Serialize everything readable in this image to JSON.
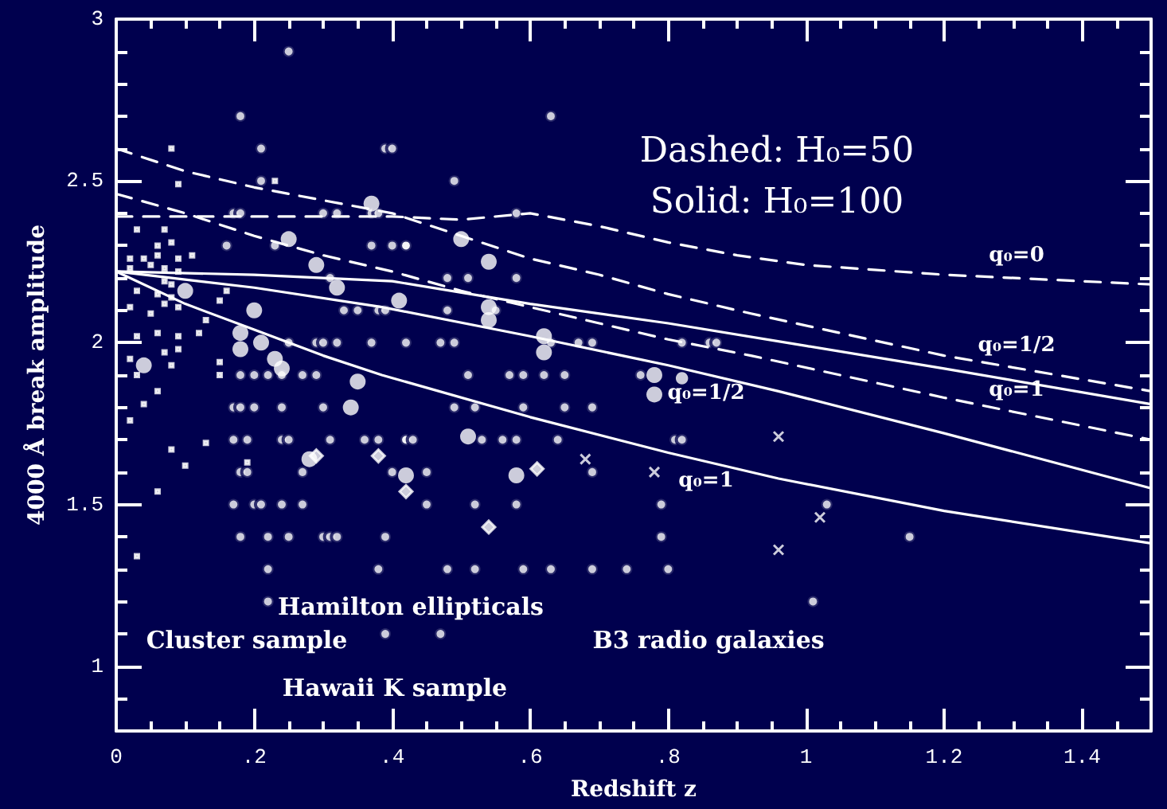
{
  "chart_data": {
    "type": "scatter",
    "xlabel": "Redshift z",
    "ylabel": "4000 Å break amplitude",
    "xlim": [
      0,
      1.5
    ],
    "xticks": [
      {
        "value": 0,
        "label": "0"
      },
      {
        "value": 0.2,
        "label": ".2"
      },
      {
        "value": 0.4,
        "label": ".4"
      },
      {
        "value": 0.6,
        "label": ".6"
      },
      {
        "value": 0.8,
        "label": ".8"
      },
      {
        "value": 1,
        "label": "1"
      },
      {
        "value": 1.2,
        "label": "1.2"
      },
      {
        "value": 1.4,
        "label": "1.4"
      }
    ],
    "ylim": [
      0.8,
      3
    ],
    "yticks": [
      1,
      1.5,
      2,
      2.5,
      3
    ],
    "grid": false,
    "series": [
      {
        "type": "scatter",
        "marker": "circle",
        "color": "#ffffff",
        "x": [
          0.25,
          0.18,
          0.21,
          0.39,
          0.4,
          0.21,
          0.17,
          0.18,
          0.3,
          0.32,
          0.37,
          0.38,
          0.16,
          0.23,
          0.37,
          0.4,
          0.42,
          0.42,
          0.31,
          0.33,
          0.35,
          0.38,
          0.39,
          0.25,
          0.29,
          0.3,
          0.32,
          0.37,
          0.42,
          0.18,
          0.2,
          0.22,
          0.24,
          0.27,
          0.29,
          0.17,
          0.18,
          0.2,
          0.24,
          0.3,
          0.17,
          0.19,
          0.24,
          0.25,
          0.31,
          0.36,
          0.38,
          0.42,
          0.18,
          0.19,
          0.27,
          0.4,
          0.17,
          0.2,
          0.21,
          0.24,
          0.27,
          0.18,
          0.22,
          0.25,
          0.3,
          0.31,
          0.32,
          0.39,
          0.22,
          0.38,
          0.22,
          0.39,
          0.63,
          0.49,
          0.58,
          0.48,
          0.51,
          0.58,
          0.48,
          0.55,
          0.47,
          0.49,
          0.63,
          0.67,
          0.69,
          0.82,
          0.86,
          0.87,
          0.51,
          0.57,
          0.59,
          0.62,
          0.65,
          0.76,
          0.49,
          0.52,
          0.59,
          0.65,
          0.69,
          0.42,
          0.43,
          0.53,
          0.56,
          0.58,
          0.64,
          0.81,
          0.82,
          0.45,
          0.69,
          0.45,
          0.52,
          0.58,
          0.79,
          0.79,
          0.48,
          0.52,
          0.59,
          0.63,
          0.69,
          0.74,
          0.8,
          0.47,
          1.03,
          1.15,
          1.01
        ],
        "values": [
          2.9,
          2.7,
          2.6,
          2.6,
          2.6,
          2.5,
          2.4,
          2.4,
          2.4,
          2.4,
          2.4,
          2.4,
          2.3,
          2.3,
          2.3,
          2.3,
          2.3,
          2.3,
          2.2,
          2.1,
          2.1,
          2.1,
          2.1,
          2.0,
          2.0,
          2.0,
          2.0,
          2.0,
          2.0,
          1.9,
          1.9,
          1.9,
          1.9,
          1.9,
          1.9,
          1.8,
          1.8,
          1.8,
          1.8,
          1.8,
          1.7,
          1.7,
          1.7,
          1.7,
          1.7,
          1.7,
          1.7,
          1.7,
          1.6,
          1.6,
          1.6,
          1.6,
          1.5,
          1.5,
          1.5,
          1.5,
          1.5,
          1.4,
          1.4,
          1.4,
          1.4,
          1.4,
          1.4,
          1.4,
          1.3,
          1.3,
          1.2,
          1.1,
          2.7,
          2.5,
          2.4,
          2.2,
          2.2,
          2.2,
          2.1,
          2.1,
          2.0,
          2.0,
          2.0,
          2.0,
          2.0,
          2.0,
          2.0,
          2.0,
          1.9,
          1.9,
          1.9,
          1.9,
          1.9,
          1.9,
          1.8,
          1.8,
          1.8,
          1.8,
          1.8,
          1.7,
          1.7,
          1.7,
          1.7,
          1.7,
          1.7,
          1.7,
          1.7,
          1.6,
          1.6,
          1.5,
          1.5,
          1.5,
          1.5,
          1.4,
          1.3,
          1.3,
          1.3,
          1.3,
          1.3,
          1.3,
          1.3,
          1.1,
          1.5,
          1.4,
          1.2
        ]
      },
      {
        "type": "bubble",
        "color": "#ffffff",
        "x": [
          0.37,
          0.25,
          0.29,
          0.32,
          0.41,
          0.1,
          0.2,
          0.18,
          0.18,
          0.21,
          0.23,
          0.24,
          0.04,
          0.35,
          0.34,
          0.28,
          0.42,
          0.5,
          0.54,
          0.54,
          0.54,
          0.62,
          0.62,
          0.78,
          0.78,
          0.51,
          0.58,
          0.82
        ],
        "values": [
          2.43,
          2.32,
          2.24,
          2.17,
          2.13,
          2.16,
          2.1,
          2.03,
          1.98,
          2.0,
          1.95,
          1.92,
          1.93,
          1.88,
          1.8,
          1.64,
          1.59,
          2.32,
          2.25,
          2.11,
          2.07,
          2.02,
          1.97,
          1.9,
          1.84,
          1.71,
          1.59,
          1.89
        ],
        "sizes": [
          1,
          1,
          1,
          1,
          1,
          1,
          1,
          1,
          1,
          1,
          1,
          1,
          1,
          1,
          1,
          1,
          1,
          1,
          1,
          1,
          1,
          1,
          1,
          1,
          1,
          1,
          1,
          0.6
        ]
      },
      {
        "type": "scatter",
        "marker": "square",
        "color": "#ffffff",
        "x": [
          0.08,
          0.09,
          0.23,
          0.03,
          0.07,
          0.06,
          0.08,
          0.06,
          0.09,
          0.04,
          0.02,
          0.11,
          0.05,
          0.07,
          0.09,
          0.02,
          0.04,
          0.07,
          0.08,
          0.03,
          0.06,
          0.08,
          0.02,
          0.05,
          0.07,
          0.09,
          0.16,
          0.13,
          0.15,
          0.03,
          0.06,
          0.09,
          0.12,
          0.07,
          0.09,
          0.02,
          0.08,
          0.15,
          0.03,
          0.15,
          0.06,
          0.02,
          0.04,
          0.08,
          0.13,
          0.1,
          0.06,
          0.03,
          0.19
        ],
        "values": [
          2.6,
          2.49,
          2.5,
          2.35,
          2.35,
          2.3,
          2.31,
          2.27,
          2.26,
          2.26,
          2.26,
          2.27,
          2.24,
          2.23,
          2.22,
          2.23,
          null,
          2.19,
          2.18,
          2.16,
          2.15,
          2.14,
          2.11,
          2.09,
          2.12,
          2.11,
          2.16,
          2.07,
          2.13,
          2.02,
          2.03,
          2.02,
          2.03,
          1.97,
          1.98,
          1.95,
          1.93,
          1.94,
          1.9,
          1.9,
          1.85,
          1.76,
          1.81,
          1.67,
          1.69,
          1.62,
          1.54,
          1.34,
          1.63
        ]
      },
      {
        "type": "scatter",
        "marker": "cross",
        "color": "#ffffff",
        "x": [
          0.68,
          0.78,
          0.96,
          1.02,
          0.96
        ],
        "values": [
          1.64,
          1.6,
          1.71,
          1.46,
          1.36
        ]
      },
      {
        "type": "scatter",
        "marker": "diamond",
        "color": "#ffffff",
        "x": [
          0.29,
          0.38,
          0.42,
          0.54,
          0.61
        ],
        "values": [
          1.65,
          1.65,
          1.54,
          1.43,
          1.61
        ]
      },
      {
        "type": "line",
        "name": "q₀=0",
        "line_style": "dashed",
        "marker": "none",
        "color": "#ffffff",
        "x": [
          0,
          0.2,
          0.4,
          0.5,
          0.6,
          0.7,
          0.8,
          0.9,
          1.0,
          1.2,
          1.5
        ],
        "values": [
          2.39,
          2.39,
          2.39,
          2.38,
          2.4,
          2.36,
          2.31,
          2.27,
          2.24,
          2.21,
          2.18
        ]
      },
      {
        "type": "line",
        "name": "q₀=1/2",
        "line_style": "dashed",
        "marker": "none",
        "color": "#ffffff",
        "x": [
          0,
          0.1,
          0.2,
          0.3,
          0.4,
          0.5,
          0.6,
          0.7,
          0.8,
          0.92,
          1.2,
          1.5
        ],
        "values": [
          2.6,
          2.53,
          2.48,
          2.44,
          2.4,
          2.33,
          2.26,
          2.21,
          2.15,
          2.09,
          1.96,
          1.85
        ]
      },
      {
        "type": "line",
        "name": "q₀=1",
        "line_style": "dashed",
        "marker": "none",
        "color": "#ffffff",
        "x": [
          0,
          0.1,
          0.2,
          0.3,
          0.4,
          0.5,
          0.6,
          0.7,
          0.8,
          0.92,
          1.2,
          1.5
        ],
        "values": [
          2.46,
          2.4,
          2.33,
          2.27,
          2.22,
          2.16,
          2.11,
          2.06,
          2.01,
          1.96,
          1.83,
          1.7
        ]
      },
      {
        "type": "line",
        "line_style": "solid",
        "marker": "none",
        "color": "#ffffff",
        "x": [
          0,
          0.2,
          0.4,
          0.6,
          0.8,
          1.0,
          1.2,
          1.5
        ],
        "values": [
          2.22,
          2.21,
          2.19,
          2.12,
          2.06,
          1.99,
          1.92,
          1.81
        ]
      },
      {
        "type": "line",
        "name": "q₀=1/2",
        "line_style": "solid",
        "marker": "none",
        "color": "#ffffff",
        "x": [
          0,
          0.2,
          0.385,
          0.6,
          0.8,
          0.96,
          1.2,
          1.5
        ],
        "values": [
          2.22,
          2.17,
          2.11,
          2.02,
          1.93,
          1.85,
          1.72,
          1.55
        ]
      },
      {
        "type": "line",
        "name": "q₀=1",
        "line_style": "solid",
        "marker": "none",
        "color": "#ffffff",
        "x": [
          0,
          0.1,
          0.2,
          0.3,
          0.385,
          0.6,
          0.8,
          0.96,
          1.2,
          1.5
        ],
        "values": [
          2.22,
          2.12,
          2.04,
          1.96,
          1.9,
          1.77,
          1.66,
          1.58,
          1.48,
          1.38
        ]
      }
    ],
    "annotations": [
      "Dashed: H₀=50",
      "Solid: H₀=100",
      "Hamilton ellipticals",
      "Cluster sample",
      "Hawaii K sample",
      "B3 radio galaxies"
    ]
  }
}
